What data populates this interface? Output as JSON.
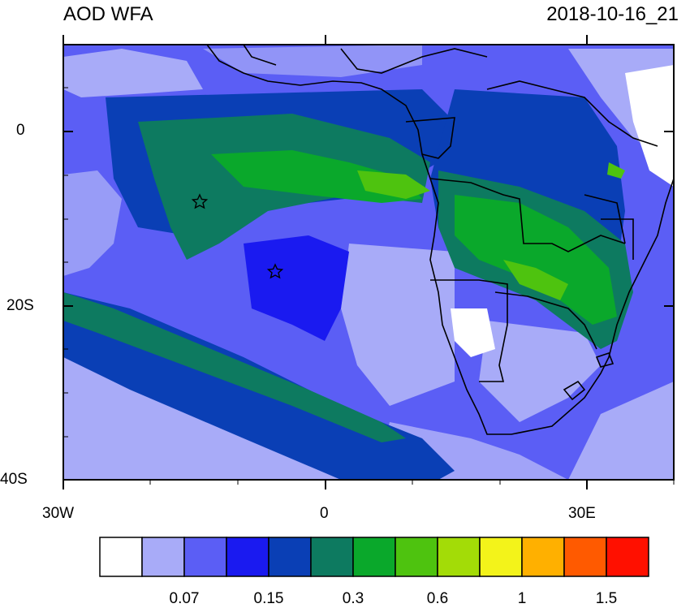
{
  "header": {
    "title": "AOD WFA",
    "datetime": "2018-10-16_21"
  },
  "axes": {
    "y_ticks": [
      "0",
      "20S",
      "40S"
    ],
    "x_ticks": [
      "30W",
      "0",
      "30E"
    ]
  },
  "colorbar": {
    "colors": [
      "#ffffff",
      "#a8abf8",
      "#5b5ef5",
      "#1a1af0",
      "#0a3fb5",
      "#0d7a60",
      "#0aa82b",
      "#4ec30f",
      "#a3dc07",
      "#f3f31a",
      "#ffb000",
      "#ff5a00",
      "#ff1000"
    ],
    "labels": [
      "0.07",
      "0.15",
      "0.3",
      "0.6",
      "1",
      "1.5"
    ]
  },
  "map": {
    "projection_extent": "30W to 40E, 40S to 10N",
    "markers": [
      "star",
      "star"
    ]
  }
}
